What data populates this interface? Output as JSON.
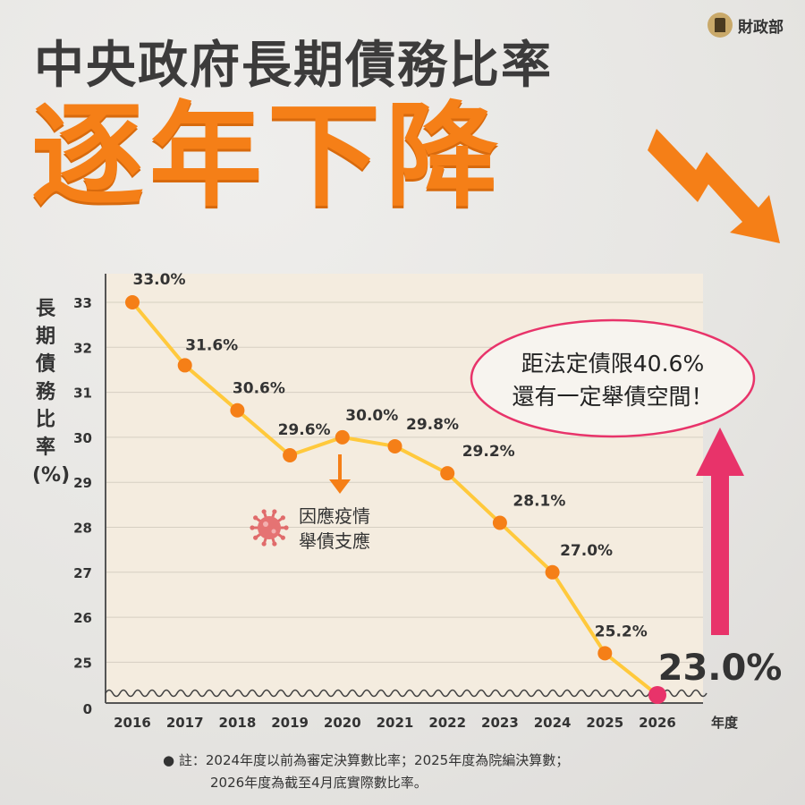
{
  "brand": {
    "name": "財政部"
  },
  "header": {
    "title": "中央政府長期債務比率",
    "headline": "逐年下降"
  },
  "colors": {
    "accent": "#f57f17",
    "line": "#ffc93c",
    "highlight": "#e8336a",
    "text": "#3c3b3b"
  },
  "callout": {
    "line1": "距法定債限40.6%",
    "line2": "還有一定舉債空間！"
  },
  "annotation": {
    "line1": "因應疫情",
    "line2": "舉債支應",
    "icon": "virus-icon"
  },
  "highlight_value": "23.0%",
  "footnote": {
    "line1": "● 註：2024年度以前為審定決算數比率；2025年度為院編決算數；",
    "line2": "2026年度為截至4月底實際數比率。"
  },
  "chart_data": {
    "type": "line",
    "ylabel": "長期債務比率(%)",
    "xlabel": "年度",
    "categories": [
      "2016",
      "2017",
      "2018",
      "2019",
      "2020",
      "2021",
      "2022",
      "2023",
      "2024",
      "2025",
      "2026"
    ],
    "values": [
      33.0,
      31.6,
      30.6,
      29.6,
      30.0,
      29.8,
      29.2,
      28.1,
      27.0,
      25.2,
      23.0
    ],
    "data_labels": [
      "33.0%",
      "31.6%",
      "30.6%",
      "29.6%",
      "30.0%",
      "29.8%",
      "29.2%",
      "28.1%",
      "27.0%",
      "25.2%",
      ""
    ],
    "y_ticks": [
      "33",
      "32",
      "31",
      "30",
      "29",
      "28",
      "27",
      "26",
      "25",
      "0"
    ],
    "y_axis_break": true,
    "ylim": [
      24.0,
      33.5
    ],
    "grid": true
  }
}
